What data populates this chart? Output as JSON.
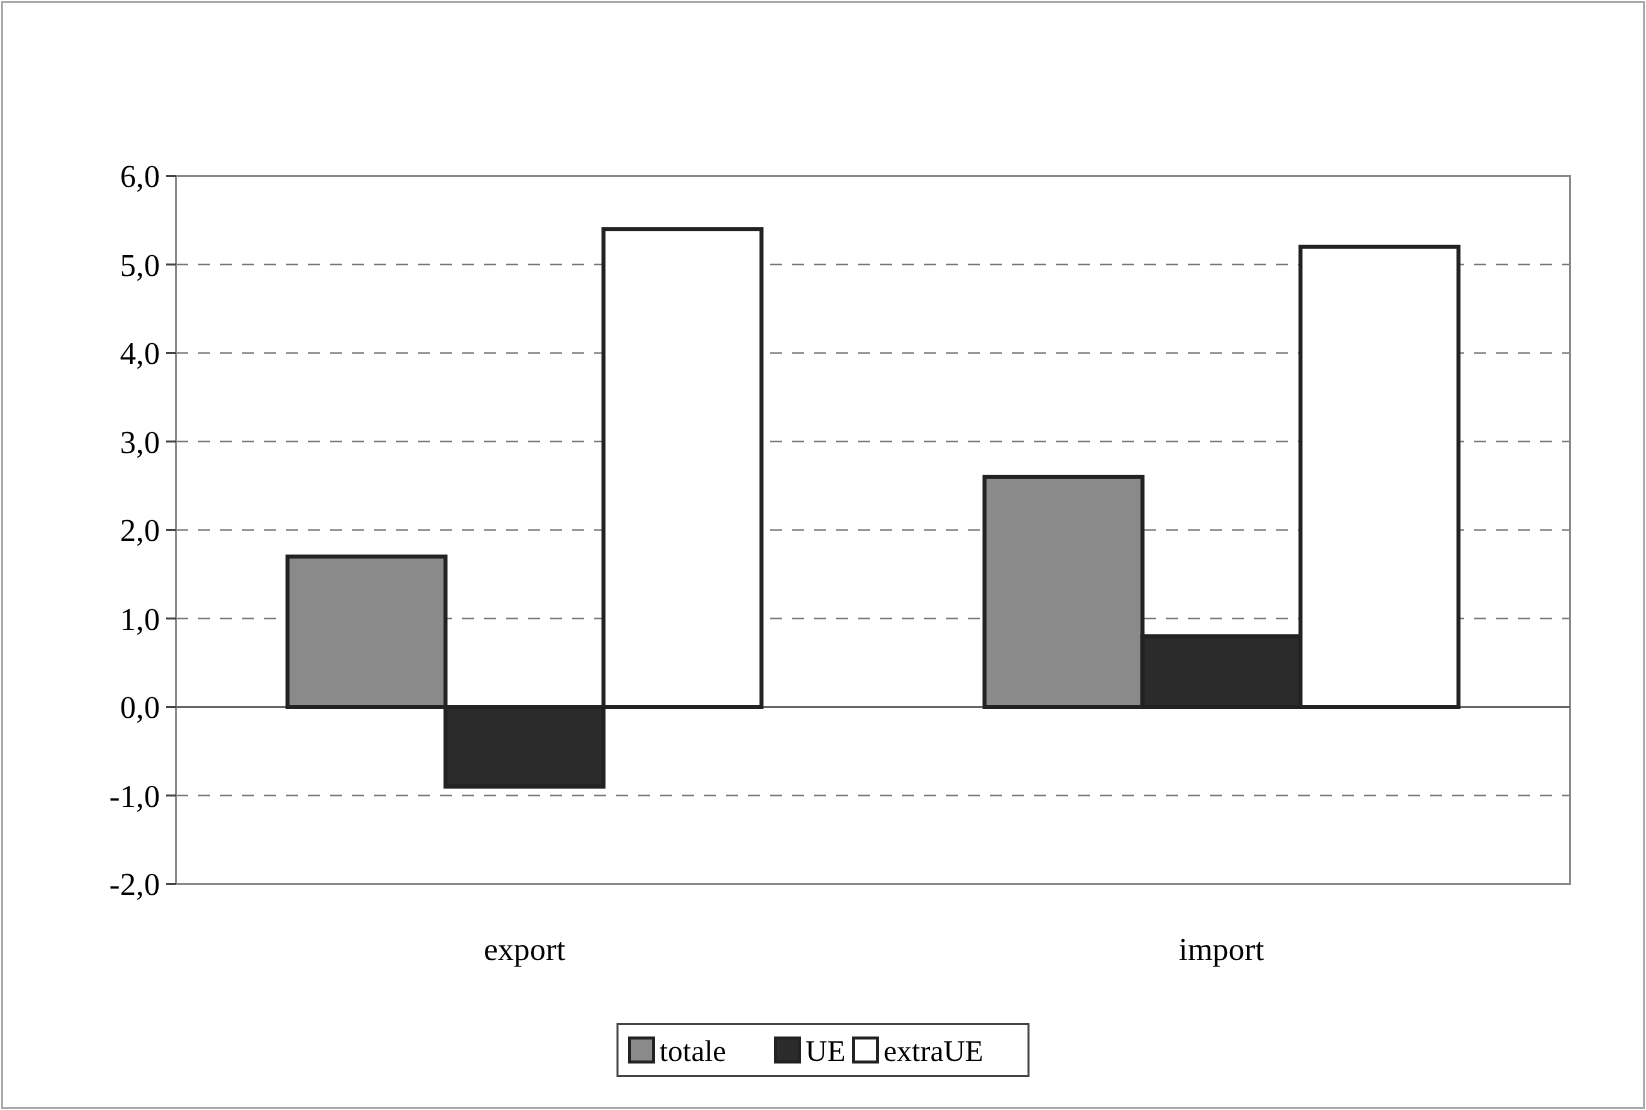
{
  "chart_data": {
    "type": "bar",
    "categories": [
      "export",
      "import"
    ],
    "series": [
      {
        "name": "totale",
        "color": "#8a8a8a",
        "values": [
          1.7,
          2.6
        ]
      },
      {
        "name": "UE",
        "color": "#2b2b2b",
        "values": [
          -0.9,
          0.8
        ]
      },
      {
        "name": "extraUE",
        "color": "#ffffff",
        "values": [
          5.4,
          5.2
        ]
      }
    ],
    "ylim": [
      -2,
      6
    ],
    "yticks": [
      {
        "value": -2,
        "label": "-2,0"
      },
      {
        "value": -1,
        "label": "-1,0"
      },
      {
        "value": 0,
        "label": "0,0"
      },
      {
        "value": 1,
        "label": "1,0"
      },
      {
        "value": 2,
        "label": "2,0"
      },
      {
        "value": 3,
        "label": "3,0"
      },
      {
        "value": 4,
        "label": "4,0"
      },
      {
        "value": 5,
        "label": "5,0"
      },
      {
        "value": 6,
        "label": "6,0"
      }
    ],
    "grid": "y",
    "legend": "bottom"
  }
}
